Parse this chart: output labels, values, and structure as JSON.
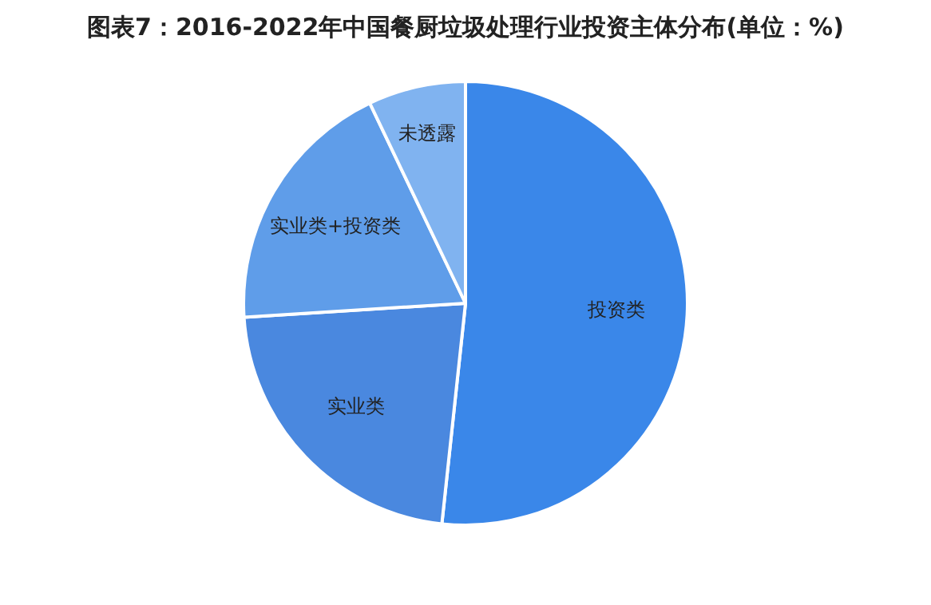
{
  "chart_data": {
    "type": "pie",
    "title": "图表7：2016-2022年中国餐厨垃圾处理行业投资主体分布(单位：%)",
    "categories": [
      "投资类",
      "实业类",
      "实业类+投资类",
      "未透露"
    ],
    "values": [
      51.7,
      22.3,
      18.9,
      7.1
    ],
    "colors": [
      "#3a87e9",
      "#4a88df",
      "#5f9de9",
      "#80b3f0"
    ],
    "legend": false
  }
}
